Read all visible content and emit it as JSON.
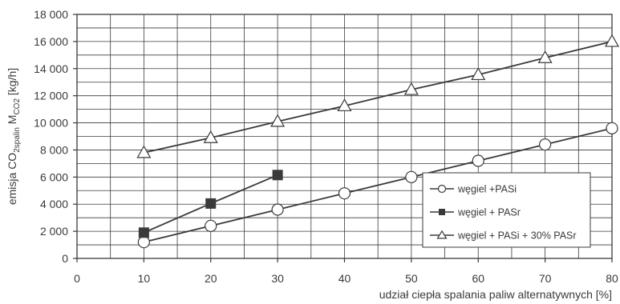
{
  "chart_data": {
    "type": "line",
    "xlabel": "udział ciepła spalania paliw alternatywnych [%]",
    "ylabel": {
      "prefix": "emisja CO",
      "sub1": "2spalin",
      "mid": " M",
      "sub2": "CO2",
      "suffix": "  [kg/h]"
    },
    "xlim": [
      0,
      80
    ],
    "ylim": [
      0,
      18000
    ],
    "x_ticks": [
      0,
      10,
      20,
      30,
      40,
      50,
      60,
      70,
      80
    ],
    "x_tick_labels": [
      "0",
      "10",
      "20",
      "30",
      "40",
      "50",
      "60",
      "70",
      "80"
    ],
    "y_ticks": [
      0,
      2000,
      4000,
      6000,
      8000,
      10000,
      12000,
      14000,
      16000,
      18000
    ],
    "y_tick_labels": [
      "0",
      "2 000",
      "4 000",
      "6 000",
      "8 000",
      "10 000",
      "12 000",
      "14 000",
      "16 000",
      "18 000"
    ],
    "x_minor_step": 5,
    "y_minor_step": 1000,
    "grid": true,
    "legend_position": "lower-right",
    "series": [
      {
        "name": "węgiel +PASi",
        "marker": "circle",
        "x": [
          10,
          20,
          30,
          40,
          50,
          60,
          70,
          80
        ],
        "y": [
          1200,
          2400,
          3600,
          4800,
          6000,
          7200,
          8400,
          9600
        ]
      },
      {
        "name": "węgiel + PASr",
        "marker": "square",
        "x": [
          10,
          20,
          30
        ],
        "y": [
          1900,
          4050,
          6150
        ]
      },
      {
        "name": "węgiel + PASi + 30% PASr",
        "marker": "triangle",
        "x": [
          10,
          20,
          30,
          40,
          50,
          60,
          70,
          80
        ],
        "y": [
          7800,
          8900,
          10100,
          11250,
          12450,
          13550,
          14800,
          16000
        ]
      }
    ],
    "colors": {
      "line": "#3a3a3a",
      "grid": "#3a3a3a",
      "marker_fill_open": "#ffffff",
      "marker_fill_solid": "#3a3a3a"
    }
  }
}
